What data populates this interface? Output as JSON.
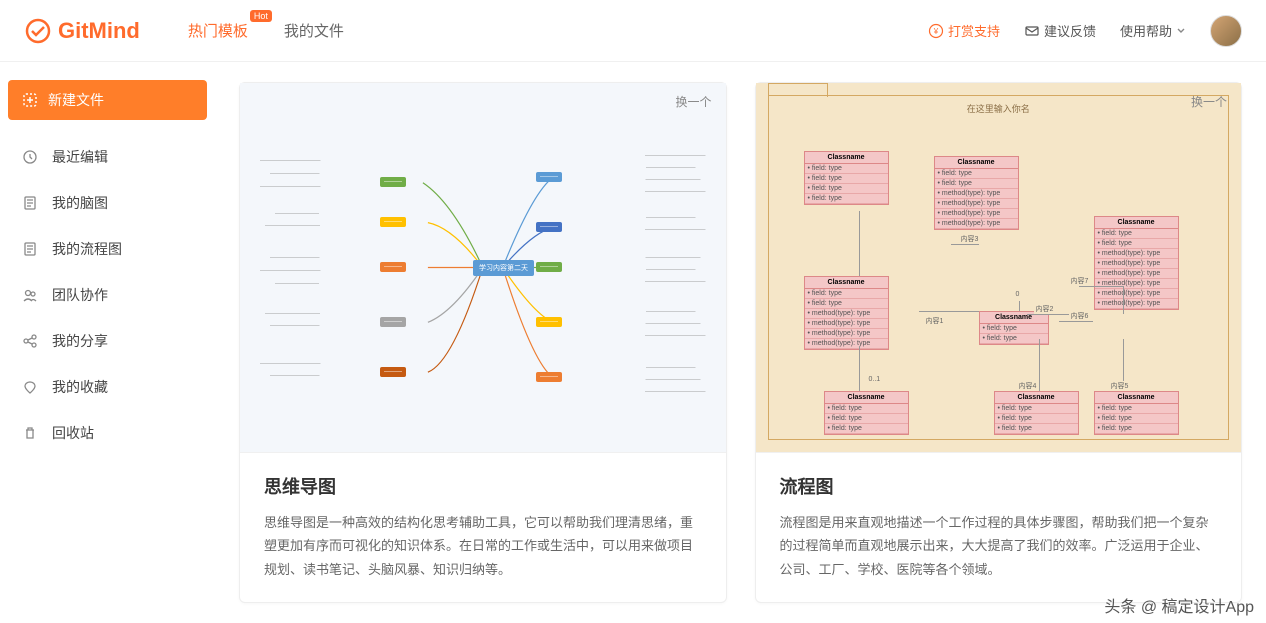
{
  "brand": {
    "name": "GitMind",
    "color": "#ff6b2c"
  },
  "nav": {
    "templates": "热门模板",
    "hot_badge": "Hot",
    "my_files": "我的文件"
  },
  "header_right": {
    "donate": "打赏支持",
    "feedback": "建议反馈",
    "help": "使用帮助"
  },
  "sidebar": {
    "new_file": "新建文件",
    "items": [
      {
        "name": "recent",
        "label": "最近编辑"
      },
      {
        "name": "mindmap",
        "label": "我的脑图"
      },
      {
        "name": "flowchart",
        "label": "我的流程图"
      },
      {
        "name": "team",
        "label": "团队协作"
      },
      {
        "name": "share",
        "label": "我的分享"
      },
      {
        "name": "favorite",
        "label": "我的收藏"
      },
      {
        "name": "trash",
        "label": "回收站"
      }
    ]
  },
  "cards": {
    "refresh": "换一个",
    "mind": {
      "title": "思维导图",
      "desc": "思维导图是一种高效的结构化思考辅助工具，它可以帮助我们理清思绪，重塑更加有序而可视化的知识体系。在日常的工作或生活中，可以用来做项目规划、读书笔记、头脑风暴、知识归纳等。",
      "preview": {
        "type": "mindmap",
        "bg": "#f4f7fb",
        "center_label": "学习内容第二天",
        "sub_colors": [
          "#70ad47",
          "#ffc000",
          "#5b9bd5",
          "#ed7d31",
          "#a5a5a5",
          "#4472c4",
          "#c55a11"
        ]
      }
    },
    "flow": {
      "title": "流程图",
      "desc": "流程图是用来直观地描述一个工作过程的具体步骤图，帮助我们把一个复杂的过程简单而直观地展示出来，大大提高了我们的效率。广泛运用于企业、公司、工厂、学校、医院等各个领域。",
      "preview": {
        "type": "uml",
        "bg": "#f5e6c8",
        "frame_title": "在这里输入你名",
        "box_bg": "#f4c7c7",
        "box_border": "#d88888",
        "class_label": "Classname",
        "field": "• field: type",
        "method": "• method(type): type",
        "edge_labels": [
          "内容1",
          "内容2",
          "内容3",
          "内容4",
          "内容5",
          "内容6",
          "内容7",
          "0..1",
          "0"
        ]
      }
    }
  },
  "watermark": "头条 @ 稿定设计App"
}
